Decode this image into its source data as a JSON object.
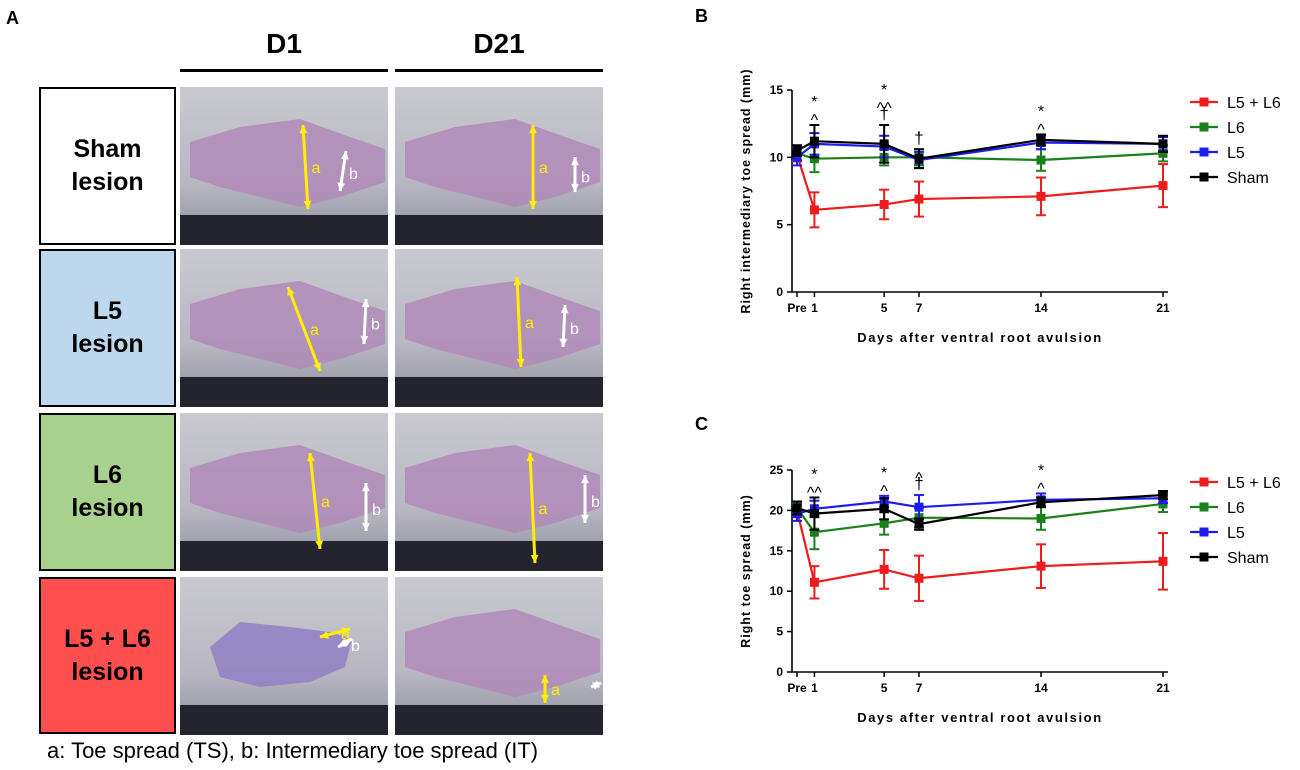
{
  "panel_a": {
    "letter": "A",
    "columns": [
      "D1",
      "D21"
    ],
    "rows": [
      {
        "line1": "Sham",
        "line2": "lesion",
        "color": "#ffffff"
      },
      {
        "line1": "L5",
        "line2": "lesion",
        "color": "#bdd7ee"
      },
      {
        "line1": "L6",
        "line2": "lesion",
        "color": "#a9d18e"
      },
      {
        "line1": "L5 + L6",
        "line2": "lesion",
        "color": "#ff4f4f"
      }
    ],
    "arrow_label_a": "a",
    "arrow_label_b": "b",
    "caption": "a: Toe spread (TS),  b: Intermediary toe spread (IT)"
  },
  "series_colors": {
    "L5 + L6": "#ee1c1c",
    "L6": "#1a801a",
    "L5": "#1c1cee",
    "Sham": "#000000"
  },
  "chart_data": [
    {
      "panel": "B",
      "type": "line",
      "title": "",
      "xlabel": "Days after ventral root avulsion",
      "ylabel": "Right intermediary toe spread (mm)",
      "x_ticks": [
        "Pre",
        "1",
        "5",
        "7",
        "14",
        "21"
      ],
      "x_values": [
        0,
        1,
        5,
        7,
        14,
        21
      ],
      "ylim": [
        0,
        15
      ],
      "yticks": [
        0,
        5,
        10,
        15
      ],
      "legend_position": "right",
      "series": [
        {
          "name": "L5 + L6",
          "values": [
            10.2,
            6.1,
            6.5,
            6.9,
            7.1,
            7.9
          ],
          "errors": [
            0.5,
            1.3,
            1.1,
            1.3,
            1.4,
            1.6
          ]
        },
        {
          "name": "L6",
          "values": [
            10.3,
            9.9,
            10.0,
            10.0,
            9.8,
            10.3
          ],
          "errors": [
            0.5,
            1.0,
            0.6,
            0.6,
            0.8,
            0.6
          ]
        },
        {
          "name": "L5",
          "values": [
            10.0,
            11.0,
            10.8,
            9.8,
            11.1,
            11.0
          ],
          "errors": [
            0.6,
            0.8,
            0.8,
            0.6,
            0.5,
            0.5
          ]
        },
        {
          "name": "Sham",
          "values": [
            10.5,
            11.2,
            11.0,
            9.9,
            11.3,
            11.0
          ],
          "errors": [
            0.4,
            1.2,
            1.4,
            0.7,
            0.4,
            0.6
          ]
        }
      ],
      "annotations": [
        {
          "x": 1,
          "lines": [
            "*",
            "^"
          ]
        },
        {
          "x": 5,
          "lines": [
            "*",
            "^^",
            "†"
          ]
        },
        {
          "x": 7,
          "lines": [
            "†"
          ]
        },
        {
          "x": 14,
          "lines": [
            "*",
            "^"
          ]
        }
      ]
    },
    {
      "panel": "C",
      "type": "line",
      "title": "",
      "xlabel": "Days after ventral root avulsion",
      "ylabel": "Right toe spread (mm)",
      "x_ticks": [
        "Pre",
        "1",
        "5",
        "7",
        "14",
        "21"
      ],
      "x_values": [
        0,
        1,
        5,
        7,
        14,
        21
      ],
      "ylim": [
        0,
        25
      ],
      "yticks": [
        0,
        5,
        10,
        15,
        20,
        25
      ],
      "legend_position": "right",
      "series": [
        {
          "name": "L5 + L6",
          "values": [
            20.0,
            11.1,
            12.7,
            11.6,
            13.1,
            13.7
          ],
          "errors": [
            0.8,
            2.0,
            2.4,
            2.8,
            2.7,
            3.5
          ]
        },
        {
          "name": "L6",
          "values": [
            20.3,
            17.3,
            18.4,
            19.1,
            19.0,
            20.8
          ],
          "errors": [
            0.6,
            2.1,
            1.4,
            1.2,
            1.4,
            1.0
          ]
        },
        {
          "name": "L5",
          "values": [
            19.6,
            20.2,
            21.1,
            20.4,
            21.3,
            21.5
          ],
          "errors": [
            0.9,
            1.0,
            0.7,
            1.5,
            0.8,
            0.6
          ]
        },
        {
          "name": "Sham",
          "values": [
            20.3,
            19.6,
            20.2,
            18.3,
            21.0,
            21.9
          ],
          "errors": [
            0.8,
            2.0,
            1.3,
            0.7,
            0.6,
            0.5
          ]
        }
      ],
      "annotations": [
        {
          "x": 1,
          "lines": [
            "*",
            "^^"
          ]
        },
        {
          "x": 5,
          "lines": [
            "*",
            "^"
          ]
        },
        {
          "x": 7,
          "lines": [
            "^",
            "†"
          ]
        },
        {
          "x": 14,
          "lines": [
            "*",
            "^"
          ]
        }
      ]
    }
  ]
}
